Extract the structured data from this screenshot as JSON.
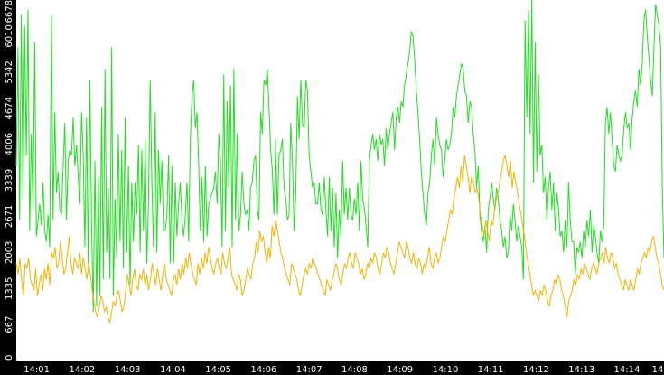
{
  "chart_data": {
    "type": "line",
    "title": "",
    "xlabel": "",
    "ylabel": "",
    "grid": false,
    "background": "#000000",
    "plot_background": "#ffffff",
    "ylim": [
      0,
      6678
    ],
    "y_ticks": [
      0,
      667,
      1335,
      2003,
      2671,
      3339,
      4006,
      4674,
      5342,
      6010,
      6678
    ],
    "y_tick_labels": [
      "0",
      "667",
      "1335",
      "2003",
      "2671",
      "3339",
      "4006",
      "4674",
      "5342",
      "6010",
      "6678"
    ],
    "x_range": [
      "14:00:33",
      "14:14:49"
    ],
    "x_ticks": [
      "14:01",
      "14:02",
      "14:03",
      "14:04",
      "14:05",
      "14:06",
      "14:07",
      "14:08",
      "14:09",
      "14:10",
      "14:11",
      "14:12",
      "14:13",
      "14:14",
      "14"
    ],
    "series": [
      {
        "color": "#22dd22",
        "values": [
          3600,
          5800,
          2600,
          6400,
          3000,
          6200,
          3800,
          6500,
          2400,
          4200,
          2800,
          5900,
          2300,
          2600,
          2900,
          2500,
          3300,
          2400,
          2200,
          2700,
          2100,
          6400,
          2600,
          4600,
          3100,
          3500,
          2800,
          2700,
          3600,
          4400,
          2600,
          3700,
          3900,
          3800,
          4500,
          3600,
          4000,
          3400,
          2900,
          4600,
          3800,
          2100,
          4500,
          1800,
          5200,
          2500,
          900,
          3700,
          1000,
          3400,
          1200,
          4700,
          1500,
          5400,
          2000,
          3200,
          1500,
          5800,
          1200,
          3000,
          1900,
          4200,
          2200,
          3900,
          1700,
          4500,
          2000,
          3600,
          1400,
          3300,
          2200,
          3300,
          2700,
          4000,
          2000,
          3900,
          2400,
          4100,
          1800,
          2900,
          5200,
          3300,
          2100,
          4600,
          2000,
          3900,
          2900,
          3700,
          2400,
          2400,
          2700,
          3800,
          1800,
          3600,
          1800,
          3300,
          2300,
          2900,
          3300,
          2600,
          2300,
          2700,
          3300,
          2200,
          4100,
          4900,
          5200,
          4300,
          4600,
          3600,
          2400,
          3400,
          2200,
          3600,
          2300,
          2900,
          3000,
          3100,
          3200,
          3500,
          2900,
          4200,
          3700,
          2100,
          5300,
          2400,
          4800,
          3200,
          5100,
          2100,
          5400,
          2600,
          4200,
          2400,
          2700,
          3500,
          2900,
          2700,
          2800,
          2400,
          3200,
          3300,
          3700,
          3800,
          2800,
          2600,
          4600,
          4200,
          5200,
          5100,
          5400,
          4700,
          3900,
          3500,
          2700,
          4100,
          2700,
          3800,
          3900,
          4100,
          3200,
          3000,
          2600,
          2700,
          4400,
          3700,
          2400,
          3100,
          4900,
          4100,
          5200,
          4400,
          4300,
          5200,
          5000,
          3800,
          3500,
          3200,
          3300,
          2900,
          2900,
          3300,
          2800,
          2700,
          3400,
          2800,
          2300,
          3400,
          2400,
          3200,
          2100,
          3100,
          1900,
          2800,
          2300,
          3700,
          2700,
          3200,
          2600,
          3200,
          2700,
          2600,
          3000,
          2700,
          3300,
          2400,
          3700,
          3000,
          2800,
          2500,
          2100,
          3700,
          4000,
          4200,
          3900,
          4100,
          3700,
          4200,
          4000,
          4100,
          3600,
          4300,
          3900,
          4200,
          4400,
          4600,
          3900,
          4500,
          4700,
          4400,
          4800,
          4700,
          5100,
          5300,
          5500,
          5700,
          6100,
          6000,
          5600,
          5000,
          4600,
          4100,
          3500,
          3100,
          2700,
          2500,
          3100,
          3300,
          3800,
          4100,
          3600,
          4500,
          4200,
          4000,
          3900,
          3400,
          3700,
          4100,
          3900,
          4000,
          4200,
          4700,
          4500,
          4900,
          5100,
          5300,
          5500,
          5400,
          5000,
          4900,
          4400,
          4800,
          4700,
          4200,
          3900,
          3200,
          3600,
          2700,
          2400,
          2200,
          2500,
          2000,
          2800,
          3000,
          3300,
          3000,
          2800,
          3200,
          3000,
          2600,
          2400,
          2100,
          2300,
          1900,
          2000,
          2700,
          2400,
          2900,
          2600,
          2200,
          2500,
          2300,
          2100,
          1500,
          6300,
          4500,
          6500,
          4200,
          6700,
          3300,
          5900,
          3500,
          5300,
          3800,
          4000,
          3100,
          3400,
          2600,
          3200,
          3500,
          2800,
          3300,
          2400,
          3100,
          2800,
          2300,
          2400,
          2000,
          2600,
          2100,
          3300,
          2600,
          2200,
          2200,
          1600,
          2100,
          2000,
          2200,
          1900,
          2400,
          2100,
          2600,
          2300,
          2800,
          2000,
          2500,
          2300,
          2000,
          1800,
          2400,
          2200,
          2500,
          4400,
          4700,
          4200,
          4600,
          4100,
          3600,
          3500,
          4000,
          3800,
          3700,
          3800,
          4300,
          4600,
          4300,
          4400,
          3900,
          4500,
          4800,
          5000,
          4700,
          5400,
          5100,
          5500,
          6300,
          6500,
          6000,
          5600,
          5200,
          4900,
          5800,
          6600,
          6400,
          6200,
          5800,
          3200,
          1900
        ]
      },
      {
        "color": "#f0b400",
        "values": [
          1800,
          1600,
          1900,
          1500,
          1200,
          1800,
          1700,
          1900,
          1500,
          1400,
          1300,
          1700,
          1200,
          1400,
          1600,
          1300,
          1700,
          1500,
          1800,
          1400,
          2000,
          1900,
          2100,
          1700,
          1800,
          2200,
          1900,
          1600,
          1700,
          2000,
          2300,
          1800,
          1600,
          1900,
          1800,
          1700,
          2000,
          1600,
          1900,
          1700,
          1500,
          1800,
          1600,
          1300,
          1100,
          900,
          800,
          1000,
          1200,
          1100,
          900,
          1000,
          800,
          700,
          900,
          1100,
          1000,
          1200,
          1300,
          1100,
          900,
          1000,
          1300,
          1600,
          1400,
          1200,
          1500,
          1700,
          1400,
          1300,
          1600,
          1500,
          1700,
          1400,
          1600,
          1300,
          1500,
          1800,
          1600,
          1400,
          1700,
          1500,
          1300,
          1600,
          1800,
          1500,
          1400,
          1300,
          1200,
          1500,
          1600,
          1400,
          1700,
          1500,
          1800,
          1600,
          1900,
          1700,
          2000,
          1800,
          1600,
          1500,
          1400,
          1800,
          1600,
          1900,
          1700,
          2000,
          1800,
          2100,
          1900,
          1700,
          1600,
          1800,
          1900,
          1700,
          1600,
          2000,
          1800,
          1700,
          1900,
          2100,
          1600,
          1500,
          1400,
          1300,
          1600,
          1500,
          1200,
          1300,
          1500,
          1700,
          1600,
          1500,
          1800,
          1900,
          2200,
          2000,
          2400,
          2200,
          2300,
          2000,
          1800,
          2100,
          1900,
          2500,
          2300,
          2600,
          2400,
          2200,
          2000,
          1900,
          1700,
          1600,
          1500,
          1400,
          1800,
          1700,
          1600,
          1500,
          1300,
          1200,
          1400,
          1600,
          1700,
          1600,
          1800,
          1700,
          1900,
          1800,
          1700,
          1600,
          1500,
          1400,
          1300,
          1200,
          1500,
          1400,
          1300,
          1500,
          1600,
          1800,
          1700,
          1500,
          1400,
          1600,
          1800,
          1700,
          1900,
          2000,
          1800,
          1700,
          2000,
          1900,
          1800,
          1600,
          1700,
          1500,
          1600,
          1800,
          1700,
          1900,
          1800,
          2000,
          1900,
          1700,
          1600,
          1800,
          2000,
          1900,
          2100,
          2000,
          1800,
          1700,
          1600,
          1800,
          2000,
          2200,
          2100,
          2000,
          1900,
          2200,
          2100,
          1900,
          1800,
          2000,
          1800,
          1700,
          1900,
          1800,
          1600,
          1800,
          1700,
          1900,
          2100,
          1800,
          1700,
          1900,
          2000,
          1800,
          1900,
          2100,
          2300,
          2200,
          2400,
          2600,
          2800,
          2700,
          3000,
          3200,
          3400,
          3200,
          3600,
          3300,
          3800,
          3600,
          3400,
          3100,
          3400,
          3300,
          3100,
          3200,
          3000,
          2700,
          2500,
          2300,
          2600,
          2400,
          2200,
          2600,
          2500,
          2800,
          3000,
          3100,
          3300,
          3500,
          3700,
          3800,
          3600,
          3400,
          3700,
          3200,
          3500,
          3300,
          3100,
          2900,
          2700,
          2500,
          2300,
          2000,
          1800,
          1600,
          1400,
          1200,
          1300,
          1200,
          1100,
          1300,
          1200,
          1400,
          1300,
          1100,
          1000,
          1200,
          1300,
          1500,
          1400,
          1600,
          1500,
          1300,
          1200,
          1000,
          800,
          1100,
          1200,
          1300,
          1500,
          1400,
          1600,
          1500,
          1700,
          1600,
          1800,
          1700,
          1600,
          1500,
          1700,
          1800,
          1700,
          1600,
          1800,
          1900,
          2000,
          1800,
          2100,
          1900,
          1800,
          2000,
          1900,
          1700,
          1800,
          1600,
          1500,
          1400,
          1300,
          1500,
          1400,
          1300,
          1500,
          1400,
          1300,
          1500,
          1700,
          1600,
          1800,
          1900,
          2000,
          1900,
          2100,
          2000,
          2200,
          2300,
          2100,
          1900,
          1800,
          1600,
          1400,
          1300
        ]
      }
    ]
  }
}
